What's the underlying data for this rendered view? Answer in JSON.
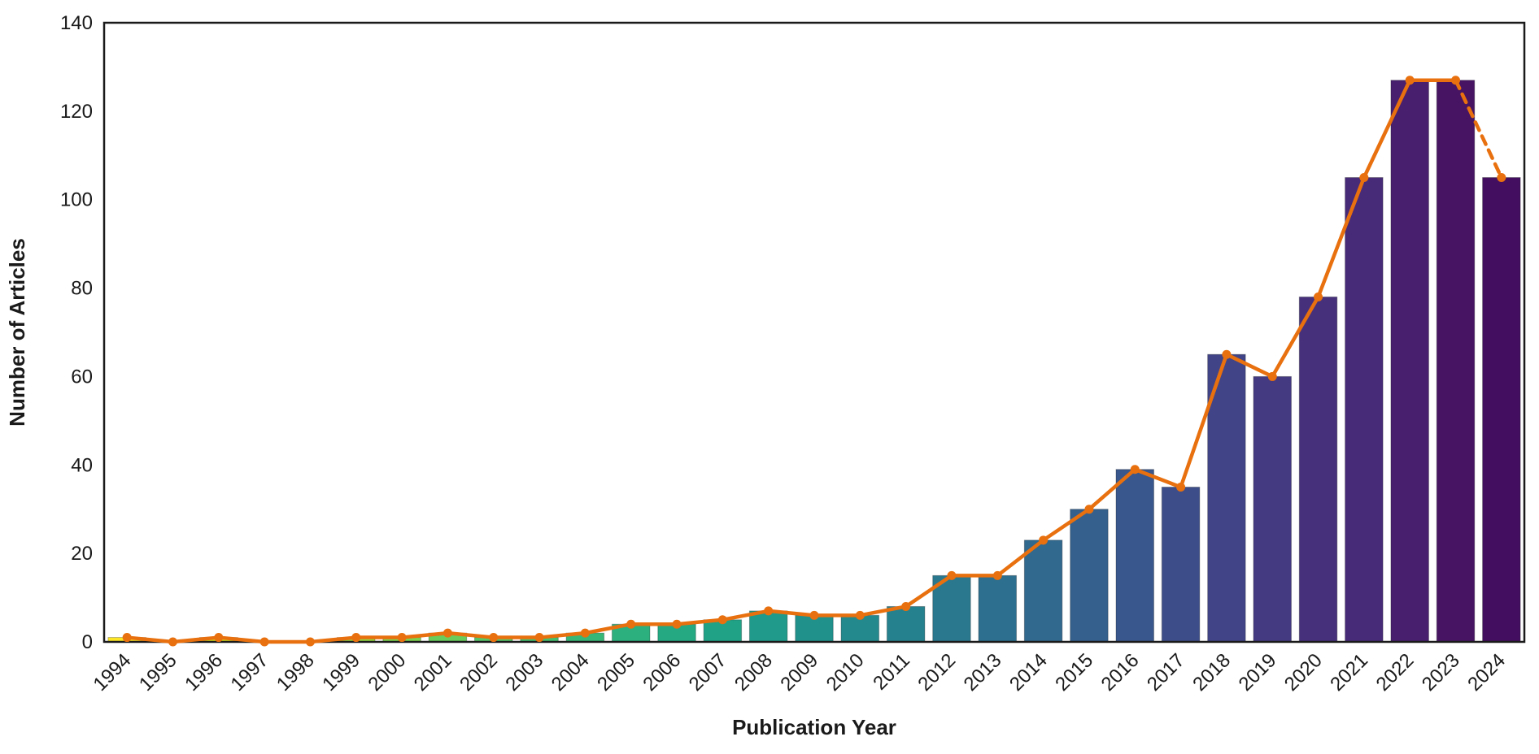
{
  "chart_data": {
    "type": "bar+line",
    "title": "",
    "xlabel": "Publication Year",
    "ylabel": "Number of Articles",
    "ylim": [
      0,
      140
    ],
    "y_ticks": [
      0,
      20,
      40,
      60,
      80,
      100,
      120,
      140
    ],
    "grid": false,
    "legend": "none",
    "categories": [
      "1994",
      "1995",
      "1996",
      "1997",
      "1998",
      "1999",
      "2000",
      "2001",
      "2002",
      "2003",
      "2004",
      "2005",
      "2006",
      "2007",
      "2008",
      "2009",
      "2010",
      "2011",
      "2012",
      "2013",
      "2014",
      "2015",
      "2016",
      "2017",
      "2018",
      "2019",
      "2020",
      "2021",
      "2022",
      "2023",
      "2024"
    ],
    "series": [
      {
        "name": "articles-per-year-bars",
        "type": "bar",
        "values": [
          1,
          0,
          1,
          0,
          0,
          1,
          1,
          2,
          1,
          1,
          2,
          4,
          4,
          5,
          7,
          6,
          6,
          8,
          15,
          15,
          23,
          30,
          39,
          35,
          65,
          60,
          78,
          105,
          127,
          127,
          105
        ],
        "bar_colors": [
          "#fde725",
          "#e9e41f",
          "#d5e21b",
          "#bede27",
          "#a8db34",
          "#92d742",
          "#7cd250",
          "#68cc5c",
          "#56c667",
          "#45bf70",
          "#37b777",
          "#2bb07e",
          "#24a983",
          "#20a287",
          "#209a8a",
          "#21918c",
          "#24898d",
          "#26818e",
          "#2a788e",
          "#2d6f8e",
          "#31688d",
          "#35608d",
          "#39578c",
          "#3d4d8a",
          "#414487",
          "#443a82",
          "#46307c",
          "#472a78",
          "#471f6e",
          "#461463",
          "#430e60"
        ]
      },
      {
        "name": "articles-trend-line",
        "type": "line",
        "values": [
          1,
          0,
          1,
          0,
          0,
          1,
          1,
          2,
          1,
          1,
          2,
          4,
          4,
          5,
          7,
          6,
          6,
          8,
          15,
          15,
          23,
          30,
          39,
          35,
          65,
          60,
          78,
          105,
          127,
          127,
          105
        ],
        "color": "#e8700e",
        "marker": "circle",
        "dashed_segment": [
          "2023",
          "2024"
        ]
      }
    ],
    "axis_color": "#1a1a1a",
    "background_color": "#ffffff"
  }
}
